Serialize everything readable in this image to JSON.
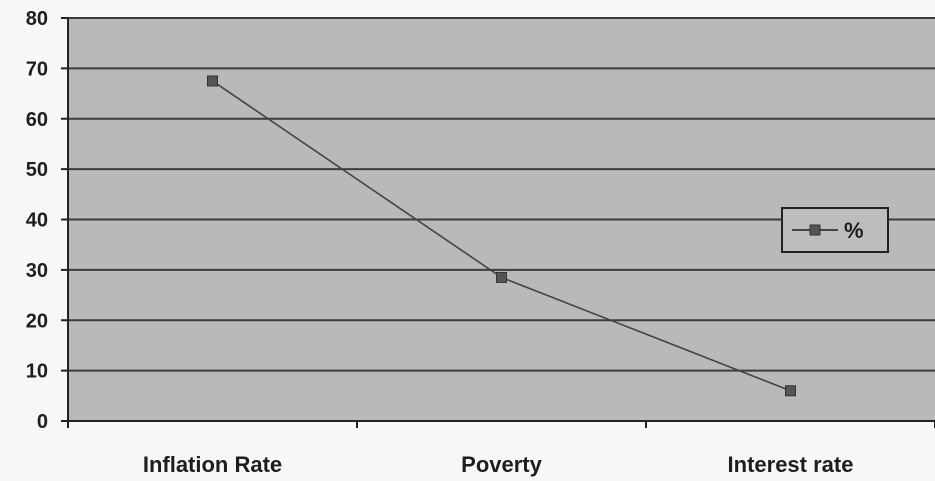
{
  "chart_data": {
    "type": "line",
    "categories": [
      "Inflation Rate",
      "Poverty",
      "Interest rate"
    ],
    "series": [
      {
        "name": "%",
        "values": [
          67.5,
          28.5,
          6.0
        ]
      }
    ],
    "ylim": [
      0,
      80
    ],
    "yticks": [
      0,
      10,
      20,
      30,
      40,
      50,
      60,
      70,
      80
    ],
    "ytick_labels": [
      "0",
      "10",
      "20",
      "30",
      "40",
      "50",
      "60",
      "70",
      "80"
    ],
    "grid": true,
    "legend": {
      "placement": "right",
      "entries": [
        "%"
      ]
    },
    "colors": {
      "plot_background": "#b9b9b9",
      "gridline": "#3c3c3c",
      "series_line": "#444444",
      "marker": "#555555"
    }
  }
}
